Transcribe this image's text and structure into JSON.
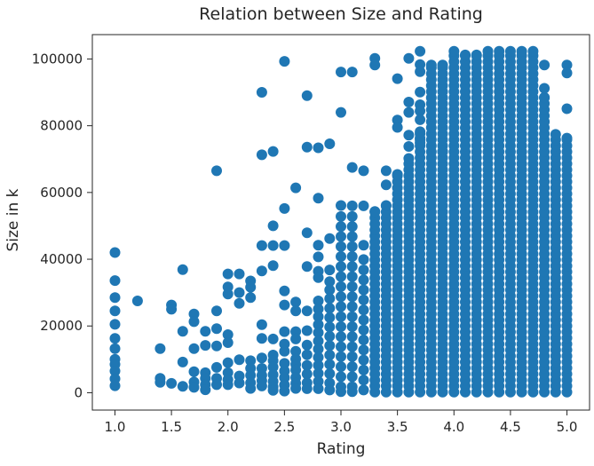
{
  "chart_data": {
    "type": "scatter",
    "title": "Relation between Size and Rating",
    "xlabel": "Rating",
    "ylabel": "Size in k",
    "xlim": [
      0.8,
      5.2
    ],
    "ylim": [
      -5200,
      107300
    ],
    "grid": false,
    "legend": "none",
    "x_ticks": [
      1.0,
      1.5,
      2.0,
      2.5,
      3.0,
      3.5,
      4.0,
      4.5,
      5.0
    ],
    "x_tick_labels": [
      "1.0",
      "1.5",
      "2.0",
      "2.5",
      "3.0",
      "3.5",
      "4.0",
      "4.5",
      "5.0"
    ],
    "y_ticks": [
      0,
      20000,
      40000,
      60000,
      80000,
      100000
    ],
    "y_tick_labels": [
      "0",
      "20000",
      "40000",
      "60000",
      "80000",
      "100000"
    ],
    "series": [
      {
        "color": "#1f77b4",
        "points": [
          [
            1.0,
            42000
          ],
          [
            1.0,
            33600
          ],
          [
            1.0,
            28500
          ],
          [
            1.0,
            24500
          ],
          [
            1.0,
            20500
          ],
          [
            1.0,
            16300
          ],
          [
            1.0,
            13200
          ],
          [
            1.0,
            10000
          ],
          [
            1.0,
            8500
          ],
          [
            1.0,
            6500
          ],
          [
            1.0,
            4200
          ],
          [
            1.0,
            2100
          ],
          [
            1.2,
            27500
          ],
          [
            1.4,
            13200
          ],
          [
            1.4,
            4300
          ],
          [
            1.4,
            3100
          ],
          [
            1.5,
            26300
          ],
          [
            1.5,
            25000
          ],
          [
            1.5,
            2800
          ],
          [
            1.6,
            36900
          ],
          [
            1.6,
            18400
          ],
          [
            1.6,
            9200
          ],
          [
            1.6,
            1900
          ],
          [
            1.7,
            23600
          ],
          [
            1.7,
            21300
          ],
          [
            1.7,
            13200
          ],
          [
            1.7,
            6300
          ],
          [
            1.7,
            3200
          ],
          [
            1.7,
            1600
          ],
          [
            1.8,
            18400
          ],
          [
            1.8,
            14200
          ],
          [
            1.8,
            6000
          ],
          [
            1.8,
            4300
          ],
          [
            1.8,
            2400
          ],
          [
            1.8,
            900
          ],
          [
            1.9,
            66500
          ],
          [
            1.9,
            24500
          ],
          [
            1.9,
            19200
          ],
          [
            1.9,
            14000
          ],
          [
            1.9,
            7600
          ],
          [
            1.9,
            4300
          ],
          [
            1.9,
            2400
          ],
          [
            2.0,
            35600
          ],
          [
            2.0,
            31700
          ],
          [
            2.0,
            29600
          ],
          [
            2.0,
            17400
          ],
          [
            2.0,
            15000
          ],
          [
            2.0,
            9000
          ],
          [
            2.0,
            6000
          ],
          [
            2.0,
            3900
          ],
          [
            2.0,
            2400
          ],
          [
            2.1,
            35600
          ],
          [
            2.1,
            30000
          ],
          [
            2.1,
            26800
          ],
          [
            2.1,
            9900
          ],
          [
            2.1,
            5000
          ],
          [
            2.1,
            2900
          ],
          [
            2.2,
            33500
          ],
          [
            2.2,
            31600
          ],
          [
            2.2,
            28500
          ],
          [
            2.2,
            9600
          ],
          [
            2.2,
            7300
          ],
          [
            2.2,
            5200
          ],
          [
            2.2,
            3000
          ],
          [
            2.2,
            1300
          ],
          [
            2.3,
            90000
          ],
          [
            2.3,
            71300
          ],
          [
            2.3,
            44100
          ],
          [
            2.3,
            36500
          ],
          [
            2.3,
            20400
          ],
          [
            2.3,
            16300
          ],
          [
            2.3,
            10400
          ],
          [
            2.3,
            7300
          ],
          [
            2.3,
            5200
          ],
          [
            2.3,
            3600
          ],
          [
            2.3,
            2000
          ],
          [
            2.4,
            72300
          ],
          [
            2.4,
            50000
          ],
          [
            2.4,
            44100
          ],
          [
            2.4,
            38100
          ],
          [
            2.4,
            16100
          ],
          [
            2.4,
            11300
          ],
          [
            2.4,
            9600
          ],
          [
            2.4,
            7700
          ],
          [
            2.4,
            5400
          ],
          [
            2.4,
            3400
          ],
          [
            2.4,
            1800
          ],
          [
            2.4,
            700
          ],
          [
            2.5,
            99300
          ],
          [
            2.5,
            55200
          ],
          [
            2.5,
            44100
          ],
          [
            2.5,
            30500
          ],
          [
            2.5,
            26300
          ],
          [
            2.5,
            18300
          ],
          [
            2.5,
            14600
          ],
          [
            2.5,
            12400
          ],
          [
            2.5,
            8800
          ],
          [
            2.5,
            6500
          ],
          [
            2.5,
            4500
          ],
          [
            2.5,
            2300
          ],
          [
            2.5,
            500
          ],
          [
            2.6,
            61400
          ],
          [
            2.6,
            27200
          ],
          [
            2.6,
            24500
          ],
          [
            2.6,
            18300
          ],
          [
            2.6,
            16100
          ],
          [
            2.6,
            12400
          ],
          [
            2.6,
            10100
          ],
          [
            2.6,
            8500
          ],
          [
            2.6,
            6800
          ],
          [
            2.6,
            4600
          ],
          [
            2.6,
            2800
          ],
          [
            2.6,
            1300
          ],
          [
            2.7,
            89000
          ],
          [
            2.7,
            73600
          ],
          [
            2.7,
            47900
          ],
          [
            2.7,
            37800
          ],
          [
            2.7,
            24500
          ],
          [
            2.7,
            18600
          ],
          [
            2.7,
            14300
          ],
          [
            2.7,
            11400
          ],
          [
            2.7,
            8200
          ],
          [
            2.7,
            5600
          ],
          [
            2.7,
            3000
          ],
          [
            2.7,
            1200
          ],
          [
            2.8,
            73400
          ],
          [
            2.8,
            58300
          ],
          [
            2.8,
            44200
          ],
          [
            2.8,
            40700
          ],
          [
            2.8,
            36400
          ],
          [
            2.8,
            34500
          ],
          [
            2.8,
            27500
          ],
          [
            2.8,
            25100
          ],
          [
            2.8,
            22800
          ],
          [
            2.8,
            20400
          ],
          [
            2.8,
            18000
          ],
          [
            2.8,
            15500
          ],
          [
            2.8,
            13100
          ],
          [
            2.8,
            10600
          ],
          [
            2.8,
            8200
          ],
          [
            2.8,
            5800
          ],
          [
            2.8,
            3400
          ],
          [
            2.8,
            1200
          ],
          [
            2.9,
            74600
          ],
          [
            2.9,
            46200
          ],
          [
            2.9,
            36800
          ],
          [
            2.9,
            33300
          ],
          [
            2.9,
            30800
          ],
          [
            2.9,
            28200
          ],
          [
            2.9,
            25300
          ],
          [
            2.9,
            22500
          ],
          [
            2.9,
            19700
          ],
          [
            2.9,
            16900
          ],
          [
            2.9,
            14100
          ],
          [
            2.9,
            11300
          ],
          [
            2.9,
            8500
          ],
          [
            2.9,
            5700
          ],
          [
            2.9,
            2900
          ],
          [
            2.9,
            800
          ],
          [
            3.0,
            96100
          ],
          [
            3.0,
            84000
          ],
          [
            3.0,
            56100
          ],
          [
            3.0,
            52800
          ],
          [
            3.0,
            49800
          ],
          [
            3.0,
            46800
          ],
          [
            3.0,
            43800
          ],
          [
            3.0,
            40800
          ],
          [
            3.0,
            37800
          ],
          [
            3.0,
            34800
          ],
          [
            3.0,
            31800
          ],
          [
            3.0,
            28800
          ],
          [
            3.0,
            25800
          ],
          [
            3.0,
            22800
          ],
          [
            3.0,
            19800
          ],
          [
            3.0,
            16800
          ],
          [
            3.0,
            13800
          ],
          [
            3.0,
            10800
          ],
          [
            3.0,
            7800
          ],
          [
            3.0,
            4800
          ],
          [
            3.0,
            1800
          ],
          [
            3.0,
            300
          ],
          [
            3.1,
            96100
          ],
          [
            3.1,
            67500
          ],
          [
            3.1,
            56000
          ],
          [
            3.1,
            52800
          ],
          [
            3.1,
            49800
          ],
          [
            3.1,
            46800
          ],
          [
            3.1,
            43800
          ],
          [
            3.1,
            40800
          ],
          [
            3.1,
            37800
          ],
          [
            3.1,
            34800
          ],
          [
            3.1,
            31800
          ],
          [
            3.1,
            28800
          ],
          [
            3.1,
            25800
          ],
          [
            3.1,
            22800
          ],
          [
            3.1,
            19800
          ],
          [
            3.1,
            16800
          ],
          [
            3.1,
            13800
          ],
          [
            3.1,
            10800
          ],
          [
            3.1,
            7800
          ],
          [
            3.1,
            4800
          ],
          [
            3.1,
            1800
          ],
          [
            3.1,
            300
          ],
          [
            3.2,
            66500
          ],
          [
            3.2,
            56000
          ],
          [
            3.2,
            44200
          ],
          [
            3.2,
            39900
          ],
          [
            3.2,
            36800
          ],
          [
            3.2,
            33800
          ],
          [
            3.2,
            30800
          ],
          [
            3.2,
            27800
          ],
          [
            3.2,
            24800
          ],
          [
            3.2,
            21800
          ],
          [
            3.2,
            18800
          ],
          [
            3.2,
            15800
          ],
          [
            3.2,
            12800
          ],
          [
            3.2,
            9800
          ],
          [
            3.2,
            6800
          ],
          [
            3.2,
            3800
          ],
          [
            3.2,
            800
          ]
        ],
        "dense_columns": [
          {
            "x": 3.3,
            "ymin": 200,
            "ymax": 54300,
            "extra": [
              100200,
              98200
            ]
          },
          {
            "x": 3.4,
            "ymin": 200,
            "ymax": 56100,
            "extra": [
              66500,
              62300
            ]
          },
          {
            "x": 3.5,
            "ymin": 200,
            "ymax": 65400,
            "extra": [
              94100,
              81700,
              79500
            ]
          },
          {
            "x": 3.6,
            "ymin": 200,
            "ymax": 70200,
            "extra": [
              100200,
              87100,
              84000,
              77200,
              73800
            ]
          },
          {
            "x": 3.7,
            "ymin": 200,
            "ymax": 78200,
            "extra": [
              102300,
              98300,
              96200,
              90100,
              86300,
              84400,
              81800,
              76300,
              74900
            ]
          },
          {
            "x": 3.8,
            "ymin": 200,
            "ymax": 98200,
            "extra": []
          },
          {
            "x": 3.9,
            "ymin": 200,
            "ymax": 98200,
            "extra": [
              72300
            ]
          },
          {
            "x": 4.0,
            "ymin": 200,
            "ymax": 102300,
            "extra": []
          },
          {
            "x": 4.1,
            "ymin": 200,
            "ymax": 101200,
            "extra": []
          },
          {
            "x": 4.2,
            "ymin": 200,
            "ymax": 101200,
            "extra": []
          },
          {
            "x": 4.3,
            "ymin": 200,
            "ymax": 102300,
            "extra": []
          },
          {
            "x": 4.4,
            "ymin": 200,
            "ymax": 102300,
            "extra": []
          },
          {
            "x": 4.5,
            "ymin": 200,
            "ymax": 102300,
            "extra": []
          },
          {
            "x": 4.6,
            "ymin": 200,
            "ymax": 102300,
            "extra": []
          },
          {
            "x": 4.7,
            "ymin": 200,
            "ymax": 102300,
            "extra": []
          },
          {
            "x": 4.8,
            "ymin": 200,
            "ymax": 88500,
            "extra": [
              98200,
              91200
            ]
          },
          {
            "x": 4.9,
            "ymin": 200,
            "ymax": 77400,
            "extra": []
          },
          {
            "x": 5.0,
            "ymin": 200,
            "ymax": 76300,
            "extra": [
              98200,
              95800,
              85100
            ]
          }
        ]
      }
    ]
  }
}
